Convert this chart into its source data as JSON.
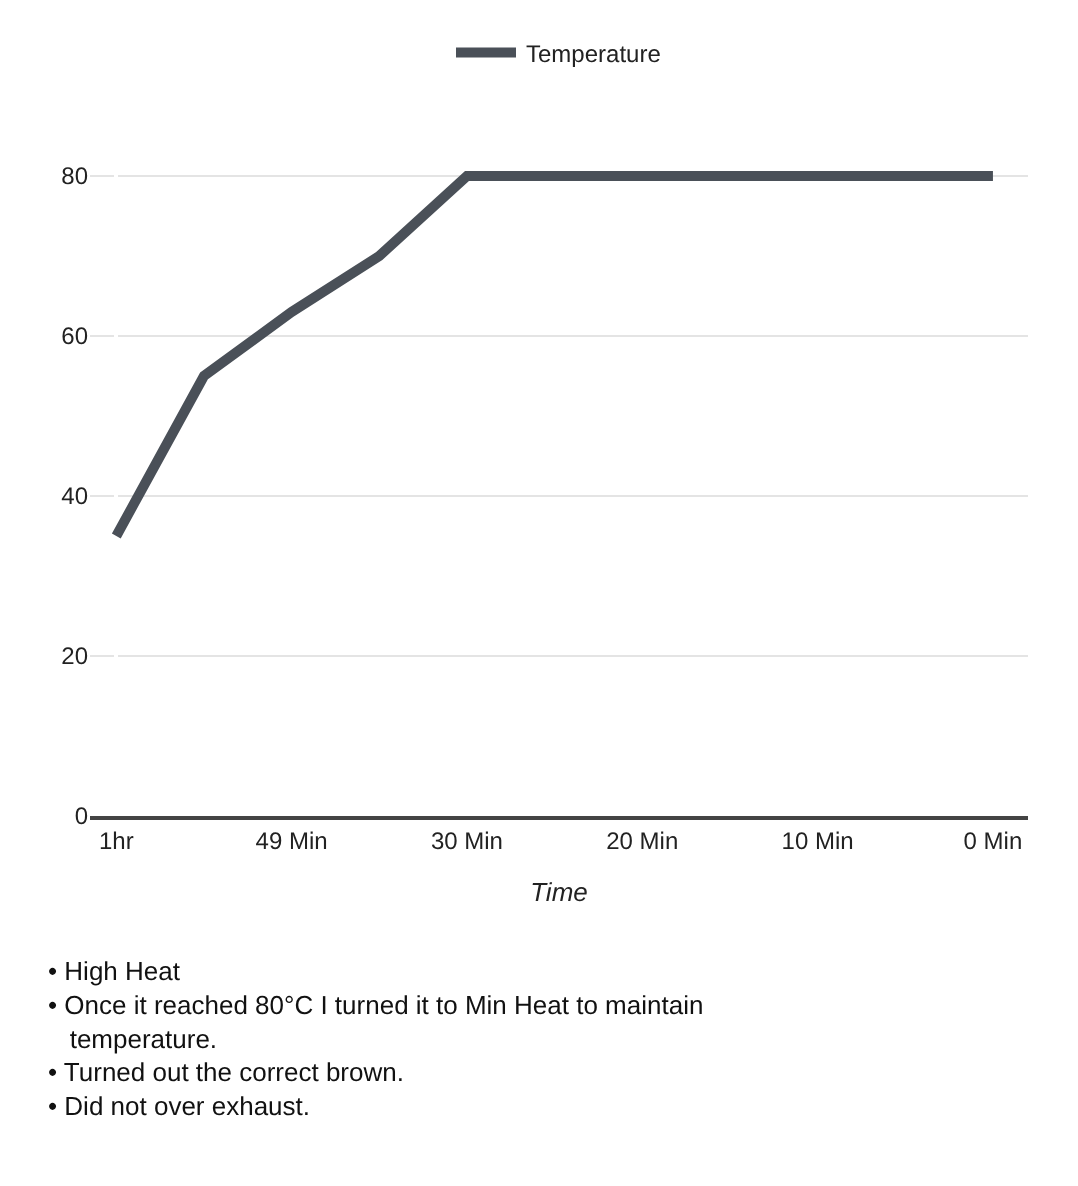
{
  "chart_data": {
    "type": "line",
    "xlabel": "Time",
    "categories": [
      "1hr",
      null,
      "49 Min",
      null,
      "30 Min",
      null,
      "20 Min",
      null,
      "10 Min",
      null,
      "0 Min"
    ],
    "series": [
      {
        "name": "Temperature",
        "color": "#4a5058",
        "values": [
          35,
          55,
          63,
          70,
          80,
          80,
          80,
          80,
          80,
          80,
          80
        ]
      }
    ],
    "ylim": [
      0,
      85
    ],
    "yticks": [
      0,
      20,
      40,
      60,
      80
    ],
    "grid": "y",
    "legend": "top",
    "marker": "none",
    "line_style": "solid",
    "annotations": [
      "• High Heat",
      "• Once it reached 80°C I turned it to Min Heat to maintain temperature.",
      "• Turned out the correct brown.",
      "• Did not over exhaust."
    ]
  }
}
